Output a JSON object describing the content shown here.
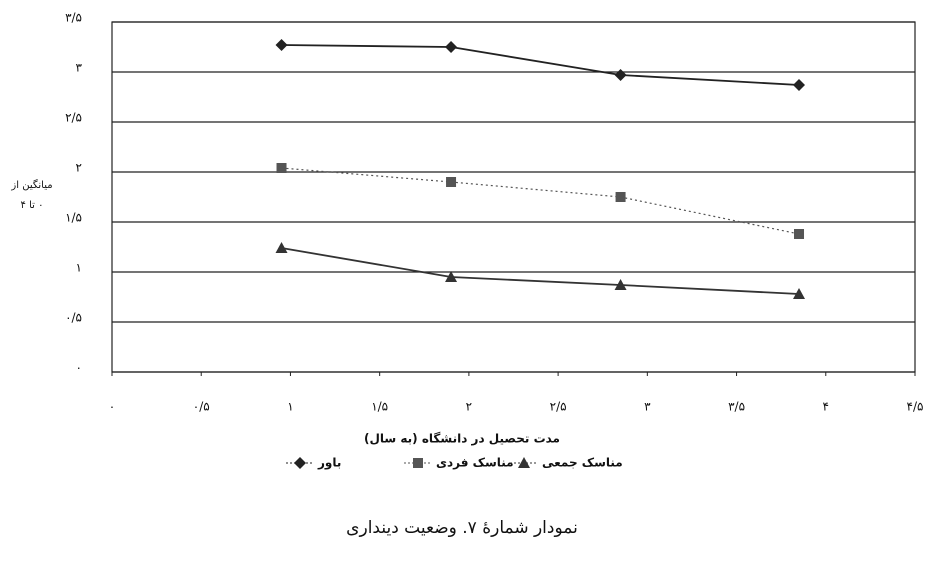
{
  "chart_data": {
    "type": "line",
    "caption": "نمودار شمارهٔ ۷. وضعیت دینداری",
    "xlabel": "مدت تحصیل در دانشگاه (به سال)",
    "ylabel": "میانگین از ۰ تا ۴",
    "xlim": [
      0,
      4.5
    ],
    "xticks": [
      {
        "value": 0,
        "label": "۰"
      },
      {
        "value": 0.5,
        "label": "۰/۵"
      },
      {
        "value": 1,
        "label": "۱"
      },
      {
        "value": 1.5,
        "label": "۱/۵"
      },
      {
        "value": 2,
        "label": "۲"
      },
      {
        "value": 2.5,
        "label": "۲/۵"
      },
      {
        "value": 3,
        "label": "۳"
      },
      {
        "value": 3.5,
        "label": "۳/۵"
      },
      {
        "value": 4,
        "label": "۴"
      },
      {
        "value": 4.5,
        "label": "۴/۵"
      }
    ],
    "ylim": [
      0,
      3.5
    ],
    "yticks": [
      {
        "value": 0,
        "label": "۰"
      },
      {
        "value": 0.5,
        "label": "۰/۵"
      },
      {
        "value": 1,
        "label": "۱"
      },
      {
        "value": 1.5,
        "label": "۱/۵"
      },
      {
        "value": 2,
        "label": "۲"
      },
      {
        "value": 2.5,
        "label": "۲/۵"
      },
      {
        "value": 3,
        "label": "۳"
      },
      {
        "value": 3.5,
        "label": "۳/۵"
      }
    ],
    "grid": true,
    "series": [
      {
        "name": "باور",
        "color": "#222222",
        "marker": "diamond",
        "line_style": "solid",
        "x": [
          0.95,
          1.9,
          2.85,
          3.85
        ],
        "values": [
          3.27,
          3.25,
          2.97,
          2.87
        ]
      },
      {
        "name": "مناسک فردی",
        "color": "#555555",
        "marker": "square",
        "line_style": "dotted",
        "x": [
          0.95,
          1.9,
          2.85,
          3.85
        ],
        "values": [
          2.04,
          1.9,
          1.75,
          1.38
        ]
      },
      {
        "name": "مناسک جمعی",
        "color": "#333333",
        "marker": "triangle",
        "line_style": "solid",
        "x": [
          0.95,
          1.9,
          2.85,
          3.85
        ],
        "values": [
          1.24,
          0.95,
          0.87,
          0.78
        ]
      }
    ]
  }
}
